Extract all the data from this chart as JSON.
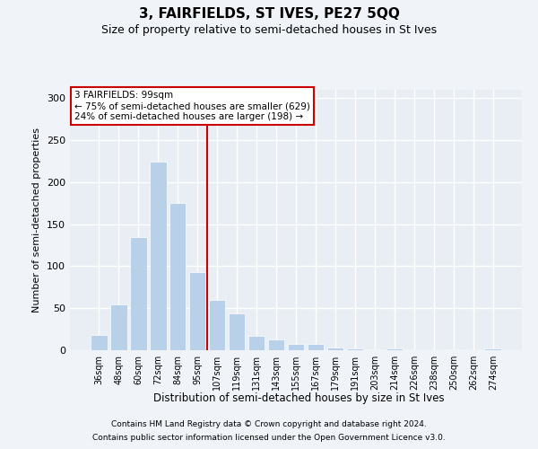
{
  "title": "3, FAIRFIELDS, ST IVES, PE27 5QQ",
  "subtitle": "Size of property relative to semi-detached houses in St Ives",
  "xlabel": "Distribution of semi-detached houses by size in St Ives",
  "ylabel": "Number of semi-detached properties",
  "categories": [
    "36sqm",
    "48sqm",
    "60sqm",
    "72sqm",
    "84sqm",
    "95sqm",
    "107sqm",
    "119sqm",
    "131sqm",
    "143sqm",
    "155sqm",
    "167sqm",
    "179sqm",
    "191sqm",
    "203sqm",
    "214sqm",
    "226sqm",
    "238sqm",
    "250sqm",
    "262sqm",
    "274sqm"
  ],
  "values": [
    18,
    54,
    135,
    225,
    175,
    93,
    60,
    44,
    17,
    13,
    8,
    7,
    3,
    2,
    1,
    2,
    0,
    0,
    1,
    0,
    2
  ],
  "bar_color": "#b8d0e8",
  "vline_color": "#cc0000",
  "vline_pos": 5.5,
  "annotation_text": "3 FAIRFIELDS: 99sqm\n← 75% of semi-detached houses are smaller (629)\n24% of semi-detached houses are larger (198) →",
  "annotation_box_color": "#cc0000",
  "ylim": [
    0,
    310
  ],
  "yticks": [
    0,
    50,
    100,
    150,
    200,
    250,
    300
  ],
  "bg_color": "#e8eef4",
  "grid_color": "#ffffff",
  "fig_bg_color": "#f0f4f8",
  "footer_line1": "Contains HM Land Registry data © Crown copyright and database right 2024.",
  "footer_line2": "Contains public sector information licensed under the Open Government Licence v3.0."
}
